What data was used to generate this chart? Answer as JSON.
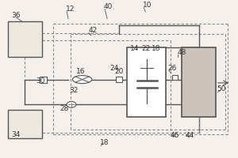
{
  "bg_color": "#f5f0eb",
  "line_color": "#555555",
  "dashed_color": "#888888",
  "font_size": 6.5
}
